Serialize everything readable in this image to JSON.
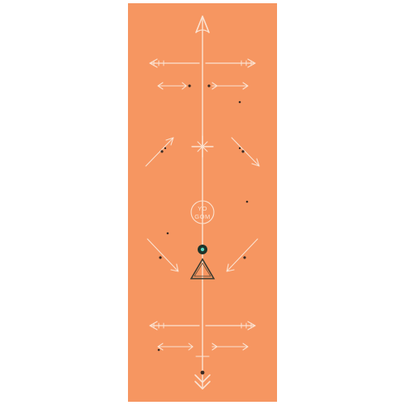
{
  "product": {
    "logo_line_1": "YO",
    "logo_line_2": "GOM"
  },
  "colors": {
    "background": "#ffffff",
    "mat": "#f69661",
    "line": "#fbe3d2",
    "dot": "#3a2a22",
    "accent_dark": "#1f3329",
    "accent_teal": "#5cd6c0",
    "triangle": "#3d3b2f"
  },
  "icons": [
    "arrow-up-icon",
    "star-icon",
    "logo-circle-icon",
    "crescent-moon-icon",
    "orb-icon",
    "triangle-icon",
    "chevron-down-icon"
  ]
}
